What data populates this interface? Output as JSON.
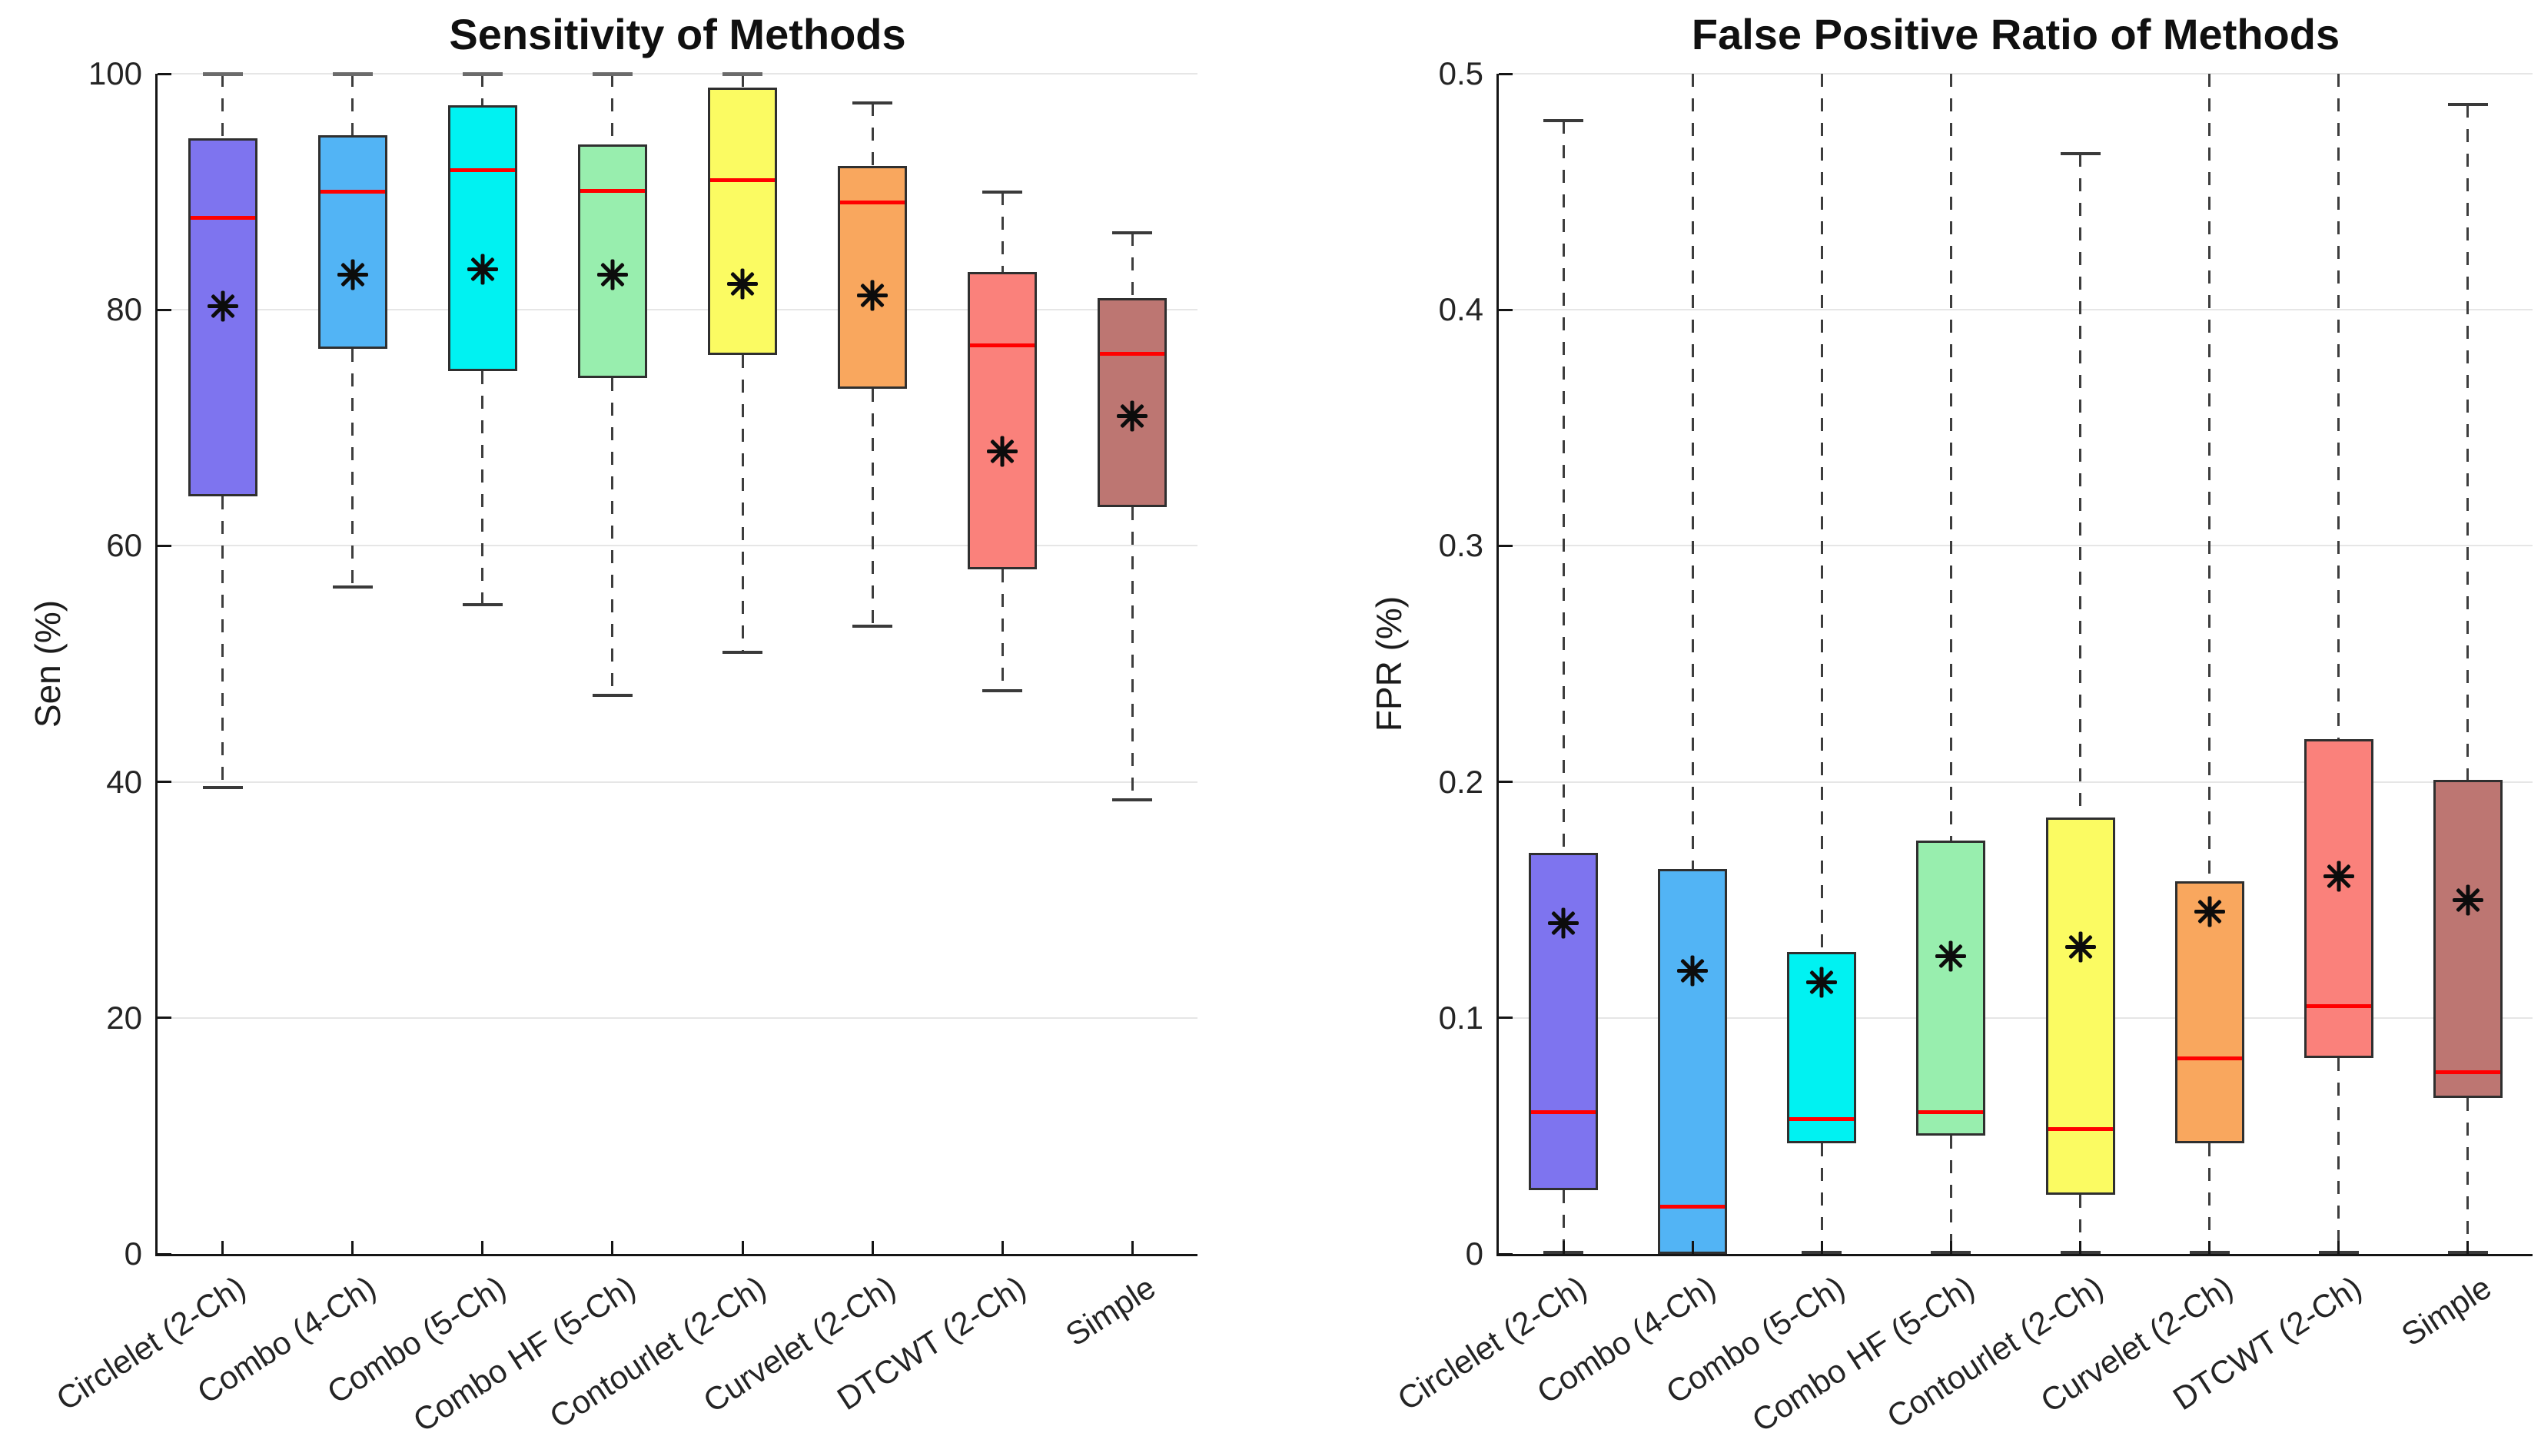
{
  "figure": {
    "background": "#ffffff",
    "n_charts": 2
  },
  "style": {
    "median_color": "#ff0000",
    "box_edge_color": "#2f2f2f",
    "whisker_color": "#3d3d3d",
    "grid_color": "#e6e6e6",
    "axis_color": "#151515",
    "text_color": "#242424",
    "mean_marker": "eight-spoke-asterisk",
    "mean_marker_color": "#0c0c0c",
    "box_fill_palette": [
      "#7e74ef",
      "#52b4f5",
      "#00f2f2",
      "#98eeae",
      "#fbfb62",
      "#f9a75e",
      "#fa817b",
      "#bd7672"
    ]
  },
  "chart_data": [
    {
      "type": "box",
      "title": "Sensitivity of Methods",
      "ylabel": "Sen (%)",
      "xlabel": "",
      "ylim": [
        0,
        100
      ],
      "yticks": [
        0,
        20,
        40,
        60,
        80,
        100
      ],
      "ytick_labels": [
        "0",
        "20",
        "40",
        "60",
        "80",
        "100"
      ],
      "grid": "horizontal",
      "legend": "none",
      "categories": [
        "Circlelet (2-Ch)",
        "Combo (4-Ch)",
        "Combo (5-Ch)",
        "Combo HF (5-Ch)",
        "Contourlet (2-Ch)",
        "Curvelet (2-Ch)",
        "DTCWT (2-Ch)",
        "Simple"
      ],
      "series": [
        {
          "name": "Circlelet (2-Ch)",
          "whisker_low": 39.5,
          "q1": 64.2,
          "median": 87.8,
          "q3": 94.5,
          "whisker_high": 100,
          "mean": 80.3,
          "clipped_top": false,
          "fill": "#7e74ef"
        },
        {
          "name": "Combo (4-Ch)",
          "whisker_low": 56.5,
          "q1": 76.7,
          "median": 90.0,
          "q3": 94.8,
          "whisker_high": 100,
          "mean": 83.0,
          "clipped_top": false,
          "fill": "#52b4f5"
        },
        {
          "name": "Combo (5-Ch)",
          "whisker_low": 55.0,
          "q1": 74.8,
          "median": 91.8,
          "q3": 97.3,
          "whisker_high": 100,
          "mean": 83.4,
          "clipped_top": false,
          "fill": "#00f2f2"
        },
        {
          "name": "Combo HF (5-Ch)",
          "whisker_low": 47.3,
          "q1": 74.2,
          "median": 90.1,
          "q3": 94.0,
          "whisker_high": 100,
          "mean": 83.0,
          "clipped_top": false,
          "fill": "#98eeae"
        },
        {
          "name": "Contourlet (2-Ch)",
          "whisker_low": 51.0,
          "q1": 76.2,
          "median": 91.0,
          "q3": 98.8,
          "whisker_high": 100,
          "mean": 82.2,
          "clipped_top": false,
          "fill": "#fbfb62"
        },
        {
          "name": "Curvelet (2-Ch)",
          "whisker_low": 53.2,
          "q1": 73.3,
          "median": 89.1,
          "q3": 92.2,
          "whisker_high": 97.5,
          "mean": 81.2,
          "clipped_top": false,
          "fill": "#f9a75e"
        },
        {
          "name": "DTCWT (2-Ch)",
          "whisker_low": 47.7,
          "q1": 58.0,
          "median": 77.0,
          "q3": 83.2,
          "whisker_high": 90.0,
          "mean": 68.0,
          "clipped_top": false,
          "fill": "#fa817b"
        },
        {
          "name": "Simple",
          "whisker_low": 38.5,
          "q1": 63.3,
          "median": 76.3,
          "q3": 81.0,
          "whisker_high": 86.5,
          "mean": 71.0,
          "clipped_top": false,
          "fill": "#bd7672"
        }
      ]
    },
    {
      "type": "box",
      "title": "False Positive Ratio of Methods",
      "ylabel": "FPR (%)",
      "xlabel": "",
      "ylim": [
        0,
        0.5
      ],
      "yticks": [
        0,
        0.1,
        0.2,
        0.3,
        0.4,
        0.5
      ],
      "ytick_labels": [
        "0",
        "0.1",
        "0.2",
        "0.3",
        "0.4",
        "0.5"
      ],
      "grid": "horizontal",
      "legend": "none",
      "categories": [
        "Circlelet (2-Ch)",
        "Combo (4-Ch)",
        "Combo (5-Ch)",
        "Combo HF (5-Ch)",
        "Contourlet (2-Ch)",
        "Curvelet (2-Ch)",
        "DTCWT (2-Ch)",
        "Simple"
      ],
      "series": [
        {
          "name": "Circlelet (2-Ch)",
          "whisker_low": 0,
          "q1": 0.027,
          "median": 0.06,
          "q3": 0.17,
          "whisker_high": 0.48,
          "mean": 0.14,
          "clipped_top": false,
          "fill": "#7e74ef"
        },
        {
          "name": "Combo (4-Ch)",
          "whisker_low": 0,
          "q1": 0.0,
          "median": 0.02,
          "q3": 0.163,
          "whisker_high": 0.5,
          "mean": 0.12,
          "clipped_top": true,
          "fill": "#52b4f5"
        },
        {
          "name": "Combo (5-Ch)",
          "whisker_low": 0,
          "q1": 0.047,
          "median": 0.057,
          "q3": 0.128,
          "whisker_high": 0.5,
          "mean": 0.115,
          "clipped_top": true,
          "fill": "#00f2f2"
        },
        {
          "name": "Combo HF (5-Ch)",
          "whisker_low": 0,
          "q1": 0.05,
          "median": 0.06,
          "q3": 0.175,
          "whisker_high": 0.5,
          "mean": 0.126,
          "clipped_top": true,
          "fill": "#98eeae"
        },
        {
          "name": "Contourlet (2-Ch)",
          "whisker_low": 0,
          "q1": 0.025,
          "median": 0.053,
          "q3": 0.185,
          "whisker_high": 0.466,
          "mean": 0.13,
          "clipped_top": false,
          "fill": "#fbfb62"
        },
        {
          "name": "Curvelet (2-Ch)",
          "whisker_low": 0,
          "q1": 0.047,
          "median": 0.083,
          "q3": 0.158,
          "whisker_high": 0.5,
          "mean": 0.145,
          "clipped_top": true,
          "fill": "#f9a75e"
        },
        {
          "name": "DTCWT (2-Ch)",
          "whisker_low": 0,
          "q1": 0.083,
          "median": 0.105,
          "q3": 0.218,
          "whisker_high": 0.5,
          "mean": 0.16,
          "clipped_top": true,
          "fill": "#fa817b"
        },
        {
          "name": "Simple",
          "whisker_low": 0,
          "q1": 0.066,
          "median": 0.077,
          "q3": 0.201,
          "whisker_high": 0.487,
          "mean": 0.15,
          "clipped_top": false,
          "fill": "#bd7672"
        }
      ]
    }
  ]
}
